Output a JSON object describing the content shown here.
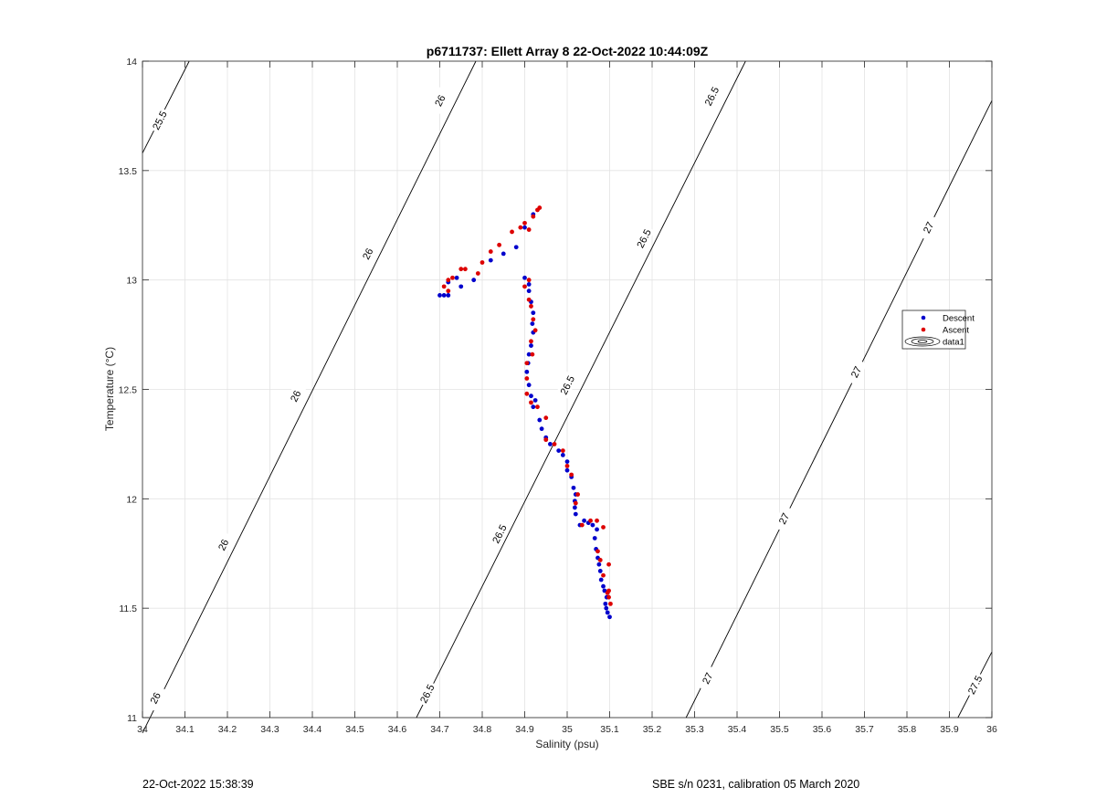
{
  "chart_data": {
    "type": "scatter",
    "title": "p6711737: Ellett Array 8 22-Oct-2022 10:44:09Z",
    "xlabel": "Salinity (psu)",
    "ylabel": "Temperature (°C)",
    "xlim": [
      34,
      36
    ],
    "ylim": [
      11,
      14
    ],
    "xticks": [
      34,
      34.1,
      34.2,
      34.3,
      34.4,
      34.5,
      34.6,
      34.7,
      34.8,
      34.9,
      35,
      35.1,
      35.2,
      35.3,
      35.4,
      35.5,
      35.6,
      35.7,
      35.8,
      35.9,
      36
    ],
    "yticks": [
      11,
      11.5,
      12,
      12.5,
      13,
      13.5,
      14
    ],
    "grid": true,
    "legend_position": "right",
    "legend": [
      {
        "name": "Descent",
        "color": "#0000cc",
        "marker": "dot"
      },
      {
        "name": "Ascent",
        "color": "#dd0000",
        "marker": "dot"
      },
      {
        "name": "data1",
        "color": "#000000",
        "marker": "contour"
      }
    ],
    "contours": [
      {
        "label": "25.5",
        "points": [
          [
            34.0,
            13.58
          ],
          [
            34.11,
            14.0
          ]
        ],
        "label_at": [
          [
            34.04,
            13.73
          ]
        ]
      },
      {
        "label": "26",
        "points": [
          [
            34.0,
            10.93
          ],
          [
            34.785,
            14.0
          ]
        ],
        "label_at": [
          [
            34.03,
            11.09
          ],
          [
            34.19,
            11.79
          ],
          [
            34.36,
            12.47
          ],
          [
            34.53,
            13.12
          ],
          [
            34.7,
            13.82
          ]
        ]
      },
      {
        "label": "26.5",
        "points": [
          [
            34.645,
            11.0
          ],
          [
            35.42,
            14.0
          ]
        ],
        "label_at": [
          [
            34.67,
            11.11
          ],
          [
            34.84,
            11.84
          ],
          [
            35.0,
            12.52
          ],
          [
            35.18,
            13.19
          ],
          [
            35.34,
            13.84
          ]
        ]
      },
      {
        "label": "27",
        "points": [
          [
            35.28,
            11.0
          ],
          [
            36.0,
            13.82
          ]
        ],
        "label_at": [
          [
            35.33,
            11.18
          ],
          [
            35.51,
            11.91
          ],
          [
            35.68,
            12.58
          ],
          [
            35.85,
            13.24
          ]
        ]
      },
      {
        "label": "27.5",
        "points": [
          [
            35.92,
            11.0
          ],
          [
            36.0,
            11.3
          ]
        ],
        "label_at": [
          [
            35.96,
            11.15
          ]
        ]
      }
    ],
    "series": [
      {
        "name": "Descent",
        "points": [
          [
            35.1,
            11.46
          ],
          [
            35.095,
            11.48
          ],
          [
            35.092,
            11.5
          ],
          [
            35.09,
            11.52
          ],
          [
            35.093,
            11.55
          ],
          [
            35.088,
            11.58
          ],
          [
            35.085,
            11.6
          ],
          [
            35.08,
            11.63
          ],
          [
            35.078,
            11.67
          ],
          [
            35.075,
            11.7
          ],
          [
            35.072,
            11.73
          ],
          [
            35.068,
            11.77
          ],
          [
            35.065,
            11.82
          ],
          [
            35.07,
            11.86
          ],
          [
            35.06,
            11.88
          ],
          [
            35.05,
            11.89
          ],
          [
            35.04,
            11.9
          ],
          [
            35.03,
            11.88
          ],
          [
            35.02,
            11.93
          ],
          [
            35.018,
            11.96
          ],
          [
            35.018,
            11.99
          ],
          [
            35.02,
            12.02
          ],
          [
            35.015,
            12.05
          ],
          [
            35.01,
            12.1
          ],
          [
            35.0,
            12.13
          ],
          [
            35.0,
            12.17
          ],
          [
            34.99,
            12.2
          ],
          [
            34.98,
            12.22
          ],
          [
            34.96,
            12.25
          ],
          [
            34.95,
            12.28
          ],
          [
            34.94,
            12.32
          ],
          [
            34.935,
            12.36
          ],
          [
            34.92,
            12.42
          ],
          [
            34.925,
            12.45
          ],
          [
            34.915,
            12.47
          ],
          [
            34.91,
            12.52
          ],
          [
            34.905,
            12.58
          ],
          [
            34.908,
            12.62
          ],
          [
            34.91,
            12.66
          ],
          [
            34.915,
            12.7
          ],
          [
            34.92,
            12.76
          ],
          [
            34.918,
            12.8
          ],
          [
            34.92,
            12.85
          ],
          [
            34.915,
            12.9
          ],
          [
            34.91,
            12.95
          ],
          [
            34.91,
            12.98
          ],
          [
            34.9,
            13.01
          ],
          [
            34.88,
            13.15
          ],
          [
            34.85,
            13.12
          ],
          [
            34.82,
            13.09
          ],
          [
            34.78,
            13.0
          ],
          [
            34.75,
            12.97
          ],
          [
            34.74,
            13.01
          ],
          [
            34.72,
            12.93
          ],
          [
            34.71,
            12.93
          ],
          [
            34.7,
            12.93
          ],
          [
            34.72,
            12.99
          ],
          [
            34.9,
            13.24
          ],
          [
            34.92,
            13.3
          ]
        ]
      },
      {
        "name": "Ascent",
        "points": [
          [
            35.102,
            11.52
          ],
          [
            35.098,
            11.55
          ],
          [
            35.095,
            11.57
          ],
          [
            35.098,
            11.58
          ],
          [
            35.098,
            11.7
          ],
          [
            35.085,
            11.65
          ],
          [
            35.078,
            11.72
          ],
          [
            35.072,
            11.76
          ],
          [
            35.085,
            11.87
          ],
          [
            35.07,
            11.9
          ],
          [
            35.055,
            11.9
          ],
          [
            35.035,
            11.88
          ],
          [
            35.02,
            11.98
          ],
          [
            35.025,
            12.02
          ],
          [
            35.01,
            12.11
          ],
          [
            35.0,
            12.15
          ],
          [
            34.99,
            12.22
          ],
          [
            34.97,
            12.25
          ],
          [
            34.95,
            12.27
          ],
          [
            34.95,
            12.37
          ],
          [
            34.93,
            12.42
          ],
          [
            34.915,
            12.44
          ],
          [
            34.905,
            12.48
          ],
          [
            34.905,
            12.55
          ],
          [
            34.905,
            12.62
          ],
          [
            34.918,
            12.66
          ],
          [
            34.915,
            12.72
          ],
          [
            34.925,
            12.77
          ],
          [
            34.92,
            12.82
          ],
          [
            34.915,
            12.88
          ],
          [
            34.91,
            12.91
          ],
          [
            34.9,
            12.97
          ],
          [
            34.91,
            13.0
          ],
          [
            34.9,
            13.26
          ],
          [
            34.91,
            13.23
          ],
          [
            34.92,
            13.29
          ],
          [
            34.93,
            13.32
          ],
          [
            34.935,
            13.33
          ],
          [
            34.89,
            13.24
          ],
          [
            34.87,
            13.22
          ],
          [
            34.84,
            13.16
          ],
          [
            34.82,
            13.13
          ],
          [
            34.8,
            13.08
          ],
          [
            34.79,
            13.03
          ],
          [
            34.76,
            13.05
          ],
          [
            34.75,
            13.05
          ],
          [
            34.73,
            13.01
          ],
          [
            34.72,
            13.0
          ],
          [
            34.71,
            12.97
          ],
          [
            34.72,
            12.95
          ]
        ]
      }
    ]
  },
  "footer": {
    "timestamp": "22-Oct-2022 15:38:39",
    "instrument": "SBE s/n 0231, calibration 05 March 2020"
  }
}
